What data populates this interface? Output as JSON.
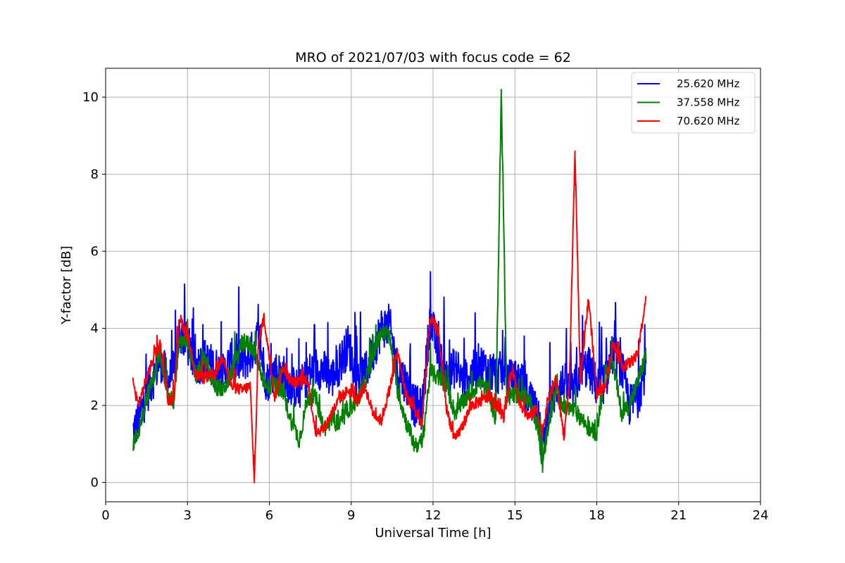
{
  "chart_data": {
    "type": "line",
    "title": "MRO of 2021/07/03 with focus code = 62",
    "xlabel": "Universal Time [h]",
    "ylabel": "Y-factor [dB]",
    "xlim": [
      0,
      24
    ],
    "ylim": [
      -0.5,
      10.75
    ],
    "xticks": [
      0,
      3,
      6,
      9,
      12,
      15,
      18,
      21,
      24
    ],
    "xtick_labels": [
      "0",
      "3",
      "6",
      "9",
      "12",
      "15",
      "18",
      "21",
      "24"
    ],
    "yticks": [
      0,
      2,
      4,
      6,
      8,
      10
    ],
    "ytick_labels": [
      "0",
      "2",
      "4",
      "6",
      "8",
      "10"
    ],
    "grid": true,
    "legend_position": "top-right",
    "series": [
      {
        "name": "25.620 MHz",
        "color": "#0000ff",
        "band": 1.1,
        "x": [
          1.0,
          1.2,
          1.5,
          1.8,
          2.0,
          2.3,
          2.5,
          2.7,
          3.0,
          3.3,
          3.6,
          4.0,
          4.3,
          4.6,
          5.0,
          5.3,
          5.6,
          5.9,
          6.2,
          6.5,
          6.8,
          7.1,
          7.4,
          7.7,
          8.0,
          8.3,
          8.6,
          8.9,
          9.2,
          9.5,
          9.8,
          10.1,
          10.4,
          10.7,
          11.0,
          11.3,
          11.6,
          11.9,
          12.2,
          12.5,
          12.8,
          13.1,
          13.4,
          13.7,
          14.0,
          14.3,
          14.6,
          14.9,
          15.2,
          15.5,
          15.8,
          16.0,
          16.2,
          16.5,
          16.8,
          17.1,
          17.4,
          17.7,
          18.0,
          18.3,
          18.6,
          18.9,
          19.2,
          19.5,
          19.8
        ],
        "y": [
          1.3,
          1.6,
          2.3,
          2.8,
          3.2,
          2.6,
          2.9,
          3.9,
          3.6,
          3.0,
          3.2,
          3.0,
          2.8,
          3.2,
          3.1,
          3.3,
          3.8,
          2.6,
          2.9,
          2.8,
          2.5,
          2.4,
          2.8,
          3.0,
          2.9,
          2.7,
          3.1,
          3.6,
          2.7,
          2.8,
          3.4,
          4.0,
          4.1,
          2.9,
          2.6,
          2.0,
          1.9,
          4.3,
          3.3,
          2.7,
          3.0,
          2.6,
          2.8,
          3.1,
          2.9,
          2.8,
          2.9,
          2.6,
          2.7,
          2.2,
          2.0,
          0.8,
          1.8,
          2.4,
          2.6,
          2.3,
          2.9,
          3.0,
          2.5,
          2.6,
          3.4,
          3.0,
          2.0,
          2.2,
          3.0
        ]
      },
      {
        "name": "37.558 MHz",
        "color": "#008000",
        "band": 0.45,
        "x": [
          1.0,
          1.2,
          1.5,
          1.8,
          2.0,
          2.3,
          2.5,
          2.7,
          3.0,
          3.3,
          3.6,
          4.0,
          4.3,
          4.6,
          5.0,
          5.3,
          5.6,
          5.9,
          6.2,
          6.5,
          6.8,
          7.1,
          7.4,
          7.7,
          8.0,
          8.3,
          8.6,
          8.9,
          9.2,
          9.5,
          9.8,
          10.1,
          10.4,
          10.7,
          11.0,
          11.3,
          11.6,
          11.9,
          12.2,
          12.5,
          12.8,
          13.1,
          13.4,
          13.7,
          14.0,
          14.3,
          14.5,
          14.7,
          15.0,
          15.3,
          15.6,
          15.9,
          16.0,
          16.2,
          16.5,
          16.8,
          17.1,
          17.4,
          17.7,
          18.0,
          18.3,
          18.6,
          18.9,
          19.2,
          19.5,
          19.8
        ],
        "y": [
          1.0,
          1.3,
          2.2,
          2.8,
          3.4,
          2.2,
          2.1,
          3.6,
          3.7,
          2.7,
          3.2,
          2.5,
          2.4,
          2.8,
          3.6,
          3.6,
          3.1,
          2.4,
          2.6,
          2.3,
          1.6,
          1.1,
          2.2,
          2.2,
          1.4,
          1.6,
          1.5,
          1.9,
          2.1,
          2.6,
          3.3,
          3.9,
          3.8,
          2.4,
          1.6,
          1.0,
          1.0,
          2.9,
          2.7,
          2.5,
          1.8,
          2.1,
          2.3,
          2.6,
          2.4,
          1.6,
          10.2,
          2.2,
          2.3,
          2.2,
          2.1,
          1.2,
          0.4,
          1.4,
          2.4,
          1.9,
          1.9,
          1.7,
          1.4,
          1.3,
          2.8,
          3.1,
          1.8,
          2.0,
          2.6,
          3.3
        ]
      },
      {
        "name": "70.620 MHz",
        "color": "#ff0000",
        "band": 0.3,
        "x": [
          1.0,
          1.2,
          1.5,
          1.8,
          2.0,
          2.3,
          2.5,
          2.7,
          3.0,
          3.3,
          3.6,
          4.0,
          4.3,
          4.6,
          5.0,
          5.3,
          5.45,
          5.6,
          5.8,
          6.2,
          6.5,
          6.8,
          7.1,
          7.4,
          7.7,
          8.0,
          8.3,
          8.6,
          8.9,
          9.2,
          9.5,
          9.8,
          10.1,
          10.4,
          10.7,
          11.0,
          11.3,
          11.6,
          11.9,
          12.2,
          12.5,
          12.8,
          13.1,
          13.4,
          13.7,
          14.0,
          14.3,
          14.6,
          14.9,
          15.2,
          15.5,
          15.8,
          16.0,
          16.2,
          16.5,
          16.8,
          17.0,
          17.2,
          17.4,
          17.7,
          18.0,
          18.3,
          18.6,
          18.9,
          19.2,
          19.5,
          19.8
        ],
        "y": [
          2.6,
          2.0,
          2.7,
          3.3,
          3.6,
          2.1,
          2.2,
          4.3,
          3.8,
          2.8,
          2.7,
          2.8,
          3.3,
          2.5,
          2.4,
          2.5,
          0.0,
          3.6,
          4.3,
          2.2,
          3.0,
          2.6,
          2.6,
          2.7,
          1.3,
          1.4,
          1.8,
          2.2,
          2.4,
          2.1,
          2.5,
          1.8,
          1.6,
          2.4,
          3.4,
          2.3,
          1.9,
          1.5,
          4.3,
          3.9,
          1.9,
          1.1,
          1.5,
          2.0,
          2.1,
          2.2,
          2.0,
          1.7,
          3.0,
          2.0,
          1.7,
          1.9,
          1.3,
          2.1,
          2.7,
          1.2,
          2.6,
          8.6,
          2.6,
          4.8,
          2.3,
          2.5,
          3.6,
          3.0,
          3.1,
          3.3,
          4.8
        ]
      }
    ]
  }
}
